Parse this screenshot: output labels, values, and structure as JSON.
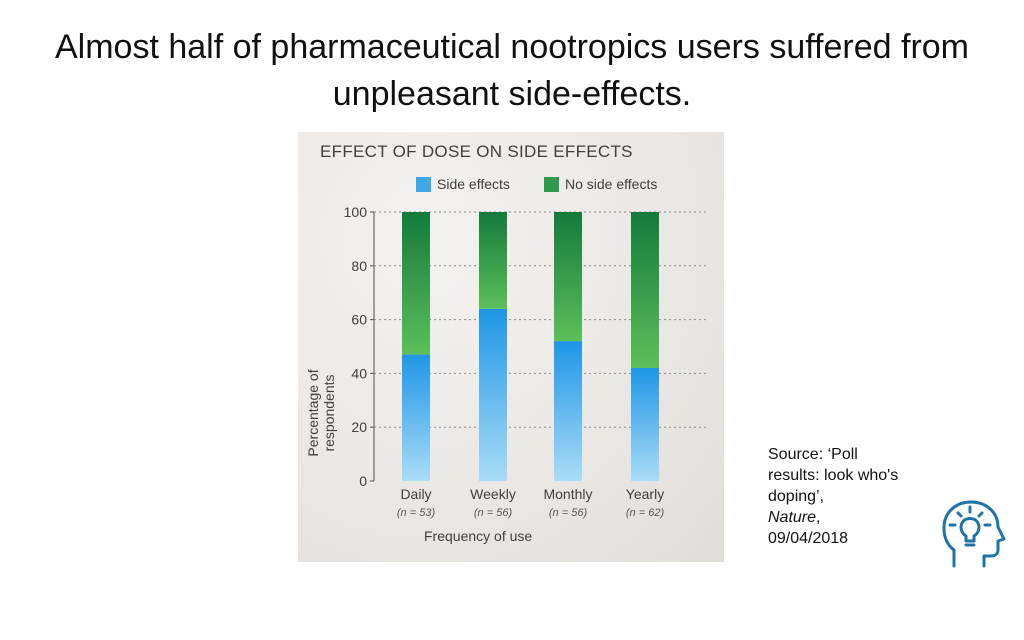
{
  "slide": {
    "title": "Almost half of pharmaceutical nootropics users suffered from unpleasant side-effects."
  },
  "source": {
    "line1": "Source: ‘Poll results: look who's doping’,",
    "journal": "Nature",
    "after_journal": ",",
    "date": "09/04/2018"
  },
  "icons": {
    "corner": "head-lightbulb-icon"
  },
  "colors": {
    "side_effects": "#3fa9e8",
    "no_side_effects": "#2e9a4e",
    "icon": "#1e73a8"
  },
  "chart_data": {
    "type": "bar",
    "stacked": true,
    "title": "EFFECT OF DOSE ON SIDE EFFECTS",
    "xlabel": "Frequency of use",
    "ylabel": "Percentage of respondents",
    "categories": [
      "Daily",
      "Weekly",
      "Monthly",
      "Yearly"
    ],
    "category_notes": [
      "(n = 53)",
      "(n = 56)",
      "(n = 56)",
      "(n = 62)"
    ],
    "ylim": [
      0,
      100
    ],
    "yticks": [
      0,
      20,
      40,
      60,
      80,
      100
    ],
    "grid": true,
    "legend_position": "top",
    "series": [
      {
        "name": "Side effects",
        "values": [
          47,
          64,
          52,
          42
        ]
      },
      {
        "name": "No side effects",
        "values": [
          53,
          36,
          48,
          58
        ]
      }
    ]
  }
}
